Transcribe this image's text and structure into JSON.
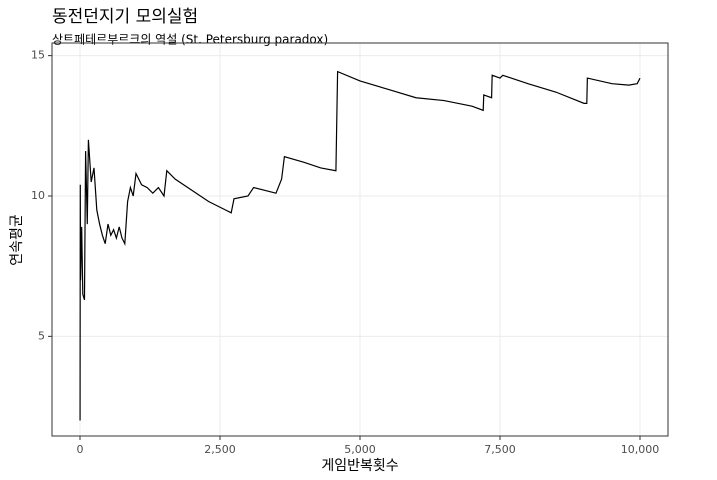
{
  "chart_data": {
    "type": "line",
    "title": "동전던지기 모의실험",
    "subtitle": "상트페테르부르크의 역설 (St. Petersburg paradox)",
    "x_label": "게임반복횟수",
    "y_label": "연속평균",
    "x": [
      1,
      5,
      10,
      30,
      50,
      80,
      100,
      130,
      150,
      200,
      250,
      300,
      350,
      400,
      450,
      500,
      550,
      600,
      650,
      700,
      750,
      800,
      850,
      900,
      950,
      1000,
      1100,
      1200,
      1300,
      1400,
      1500,
      1550,
      1700,
      2000,
      2300,
      2600,
      2700,
      2750,
      3000,
      3100,
      3500,
      3600,
      3650,
      4000,
      4300,
      4570,
      4600,
      5000,
      5500,
      6000,
      6500,
      7000,
      7200,
      7210,
      7350,
      7360,
      7500,
      7550,
      8000,
      8500,
      9000,
      9050,
      9060,
      9500,
      9800,
      9950,
      10000
    ],
    "series": [
      {
        "name": "연속평균",
        "color": "#000000",
        "values": [
          2,
          10.4,
          7,
          8.9,
          6.5,
          6.3,
          11.6,
          9,
          12,
          10.5,
          11,
          9.5,
          9.0,
          8.6,
          8.3,
          9.0,
          8.6,
          8.8,
          8.5,
          8.9,
          8.5,
          8.3,
          9.8,
          10.3,
          10.0,
          10.8,
          10.4,
          10.3,
          10.1,
          10.3,
          10.0,
          10.9,
          10.6,
          10.2,
          9.8,
          9.5,
          9.4,
          9.9,
          10.0,
          10.3,
          10.1,
          10.6,
          11.4,
          11.2,
          11.0,
          10.9,
          14.43,
          14.1,
          13.8,
          13.5,
          13.4,
          13.2,
          13.05,
          13.6,
          13.5,
          14.3,
          14.2,
          14.3,
          14.0,
          13.7,
          13.3,
          13.3,
          14.2,
          14.0,
          13.95,
          14.0,
          14.2
        ]
      }
    ],
    "xlim": [
      -500,
      10500
    ],
    "ylim": [
      1.45,
      15.45
    ],
    "xticks": [
      0,
      {
        "value": 2500,
        "label": "2,500"
      },
      {
        "value": 5000,
        "label": "5,000"
      },
      {
        "value": 7500,
        "label": "7,500"
      },
      {
        "value": 10000,
        "label": "10,000"
      }
    ],
    "yticks": [
      5,
      10,
      15
    ],
    "grid": true
  }
}
